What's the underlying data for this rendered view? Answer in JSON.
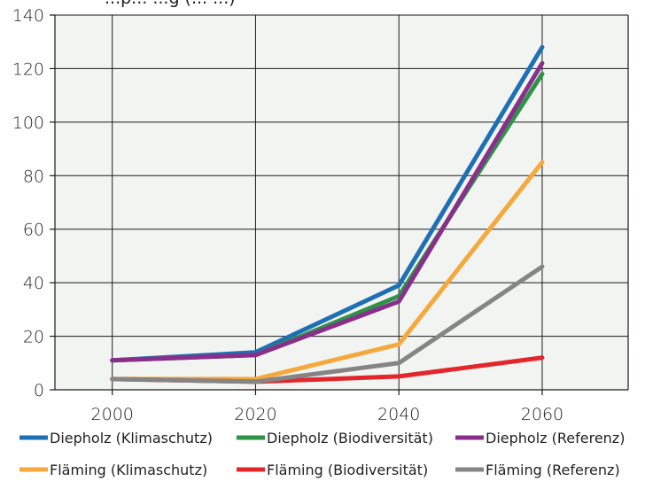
{
  "chart_data": {
    "type": "line",
    "title": "",
    "title_fragment": "...p... ...g (... ...)",
    "xlabel": "",
    "ylabel": "",
    "x": [
      2000,
      2020,
      2040,
      2060
    ],
    "xlim": [
      1992,
      2072
    ],
    "ylim": [
      0,
      140
    ],
    "x_ticks": [
      2000,
      2020,
      2040,
      2060
    ],
    "y_ticks": [
      0,
      20,
      40,
      60,
      80,
      100,
      120,
      140
    ],
    "grid": true,
    "plot_background": "#f2f4f2",
    "legend_position": "bottom",
    "series": [
      {
        "name": "Diepholz (Klimaschutz)",
        "color": "#1f6fb4",
        "values": [
          11,
          14,
          39,
          128
        ]
      },
      {
        "name": "Diepholz (Biodiversität)",
        "color": "#2e9346",
        "values": [
          11,
          13,
          35,
          118
        ]
      },
      {
        "name": "Diepholz (Referenz)",
        "color": "#8a2e8c",
        "values": [
          11,
          13,
          33,
          122
        ]
      },
      {
        "name": "Fläming (Klimaschutz)",
        "color": "#f5a83c",
        "values": [
          4,
          4,
          17,
          85
        ]
      },
      {
        "name": "Fläming (Biodiversität)",
        "color": "#e3262a",
        "values": [
          4,
          3,
          5,
          12
        ]
      },
      {
        "name": "Fläming (Referenz)",
        "color": "#858585",
        "values": [
          4,
          3,
          10,
          46
        ]
      }
    ]
  }
}
